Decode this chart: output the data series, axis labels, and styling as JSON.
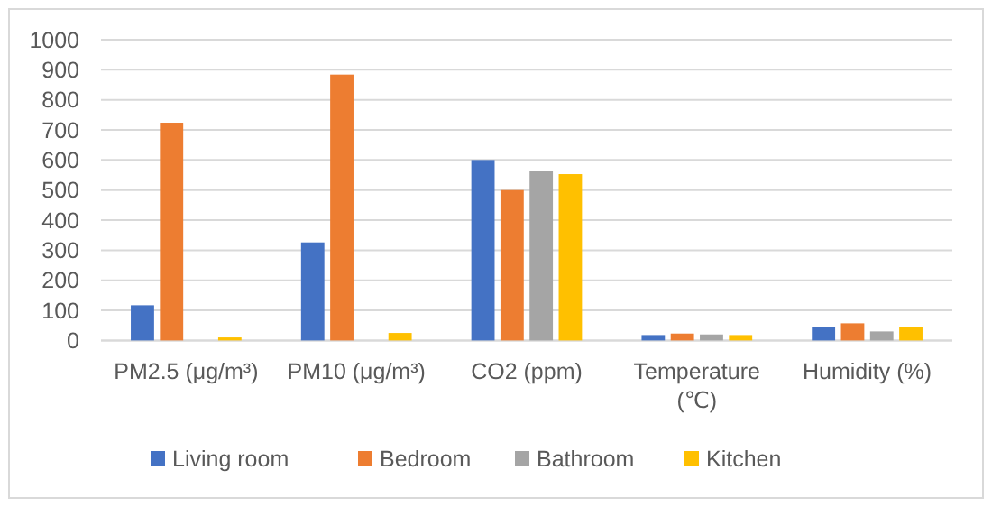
{
  "chart_data": {
    "type": "bar",
    "categories": [
      "PM2.5 (μg/m³)",
      "PM10 (μg/m³)",
      "CO2 (ppm)",
      "Temperature (℃)",
      "Humidity (%)"
    ],
    "series": [
      {
        "name": "Living room",
        "color": "#4472c4",
        "values": [
          117,
          326,
          600,
          18,
          45
        ]
      },
      {
        "name": "Bedroom",
        "color": "#ed7d31",
        "values": [
          724,
          884,
          500,
          23,
          57
        ]
      },
      {
        "name": "Bathroom",
        "color": "#a5a5a5",
        "values": [
          null,
          null,
          563,
          20,
          30
        ]
      },
      {
        "name": "Kitchen",
        "color": "#ffc000",
        "values": [
          10,
          25,
          553,
          18,
          45
        ]
      }
    ],
    "ylim": [
      0,
      1000
    ],
    "yticks": [
      0,
      100,
      200,
      300,
      400,
      500,
      600,
      700,
      800,
      900,
      1000
    ],
    "grid": "y",
    "legend": "bottom"
  }
}
